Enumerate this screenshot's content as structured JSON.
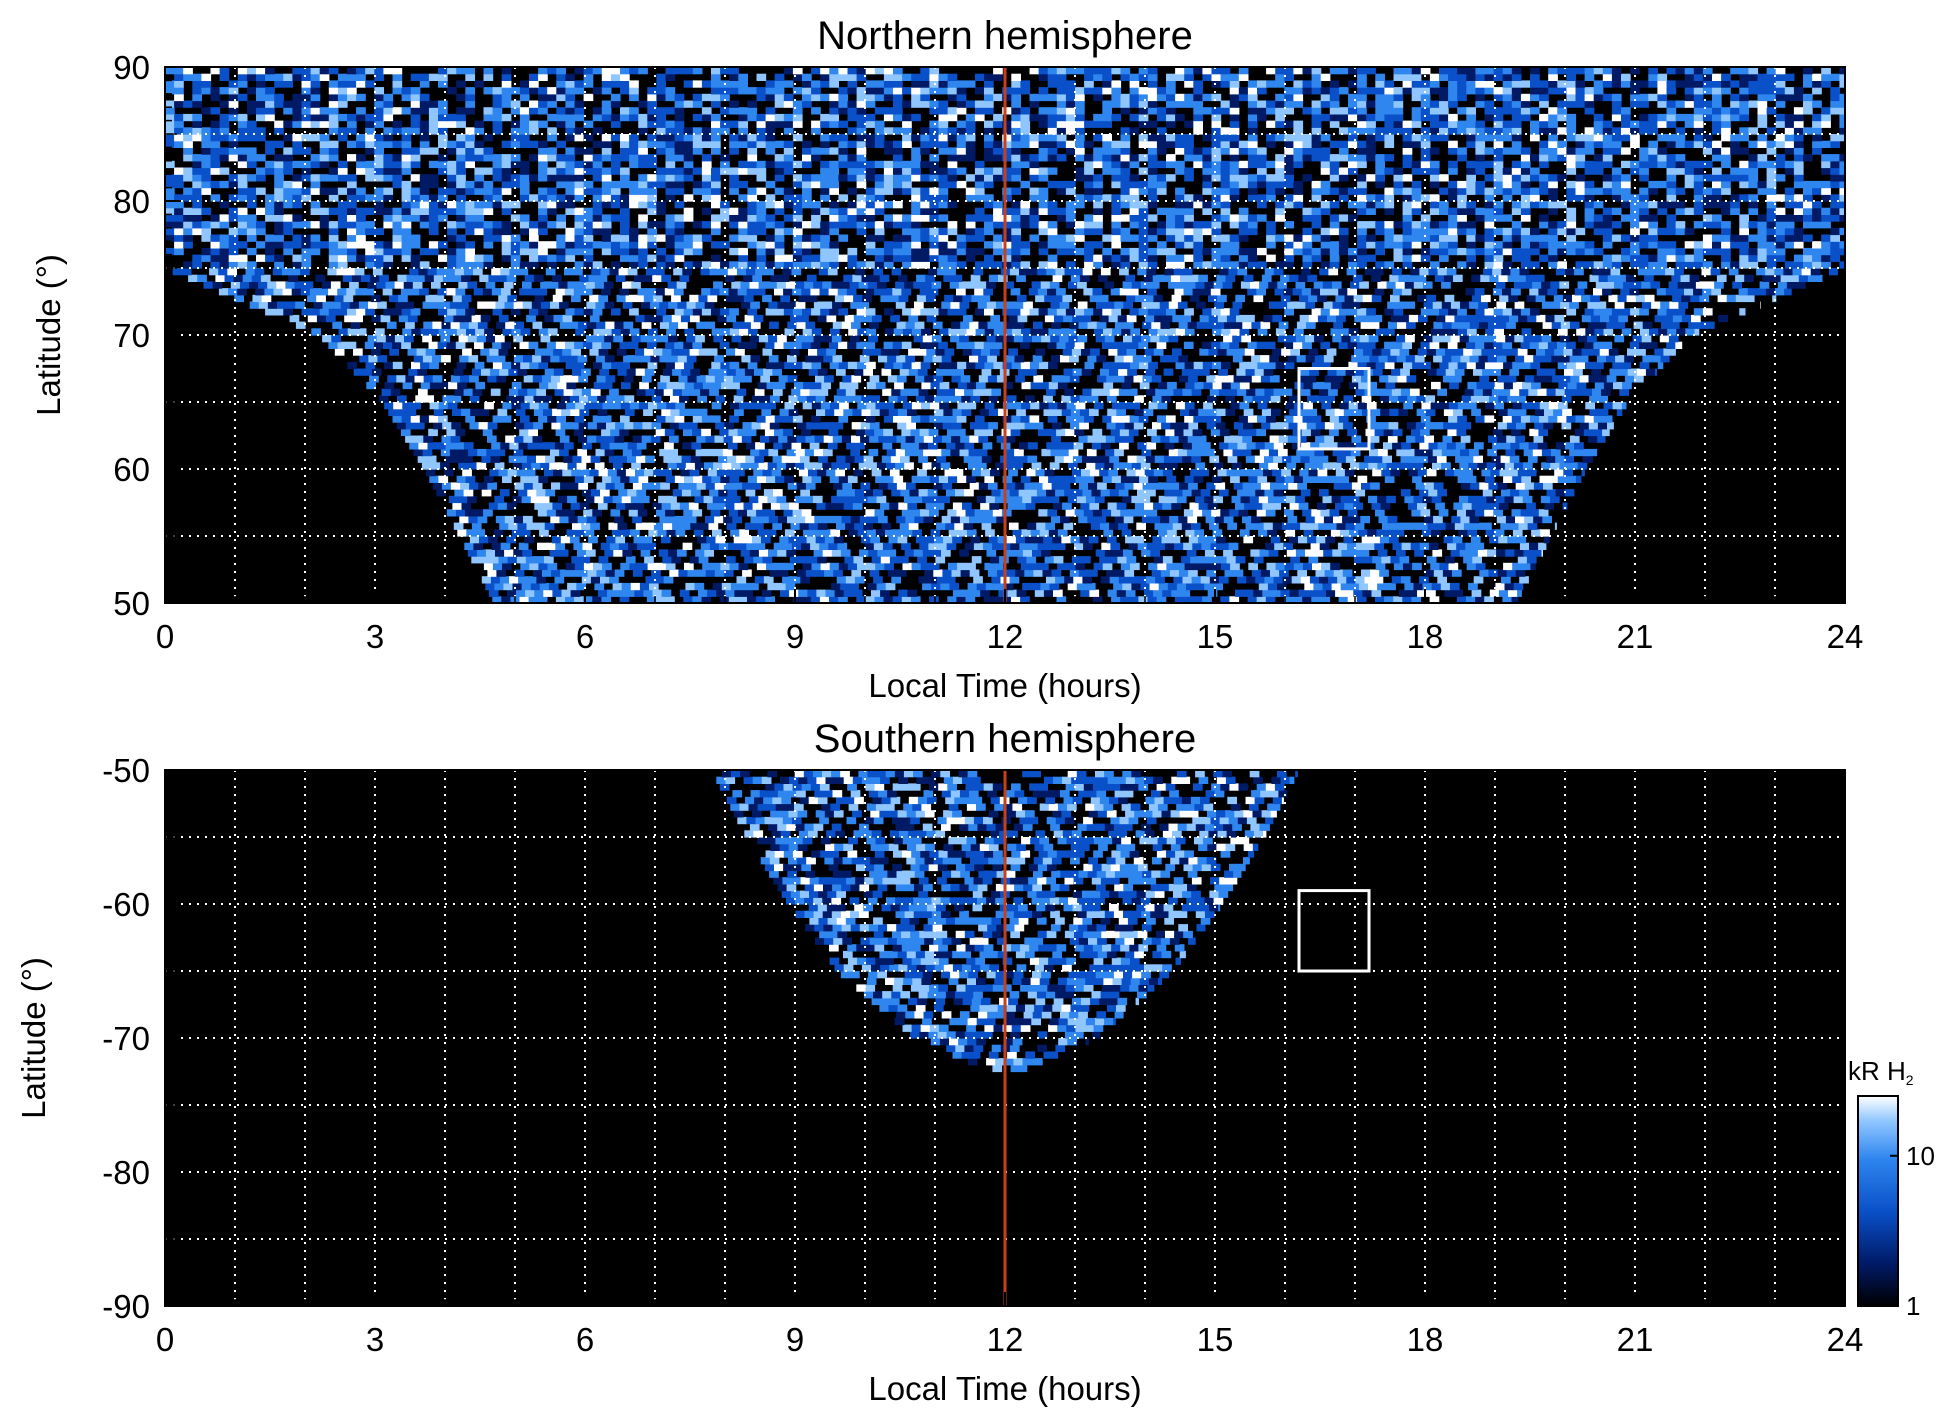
{
  "colorbar": {
    "unit": "kR H",
    "unit_sub": "2",
    "ticks": [
      {
        "value": 10,
        "label": "10"
      },
      {
        "value": 1,
        "label": "1"
      }
    ],
    "range": [
      1,
      25
    ],
    "scale": "log"
  },
  "colors": {
    "background": "#000000",
    "noon_line": "#c8401a",
    "grid": "#ffffff",
    "box": "#ffffff",
    "colormap": [
      "#000000",
      "#001a66",
      "#0a50c8",
      "#2f86ef",
      "#8fc6ff",
      "#ffffff"
    ]
  },
  "chart_data": [
    {
      "type": "heatmap",
      "title": "Northern hemisphere",
      "xlabel": "Local Time (hours)",
      "ylabel": "Latitude (°)",
      "xlim": [
        0,
        24
      ],
      "ylim": [
        50,
        90
      ],
      "xticks": [
        0,
        3,
        6,
        9,
        12,
        15,
        18,
        21,
        24
      ],
      "yticks": [
        50,
        60,
        70,
        80,
        90
      ],
      "grid": true,
      "grid_x_step": 1,
      "grid_y_step": 5,
      "noon_line": 12,
      "highlight_box": {
        "lt": [
          16.2,
          17.2
        ],
        "lat": [
          61.5,
          67.5
        ]
      },
      "coverage_edge": {
        "lat": [
          50,
          55,
          60,
          65,
          70,
          75,
          80,
          85,
          90
        ],
        "lt_from": [
          4.7,
          4.2,
          3.7,
          3.1,
          2.2,
          0,
          0,
          0,
          0
        ],
        "lt_to": [
          19.3,
          19.8,
          20.3,
          20.9,
          21.8,
          24,
          24,
          24,
          24
        ]
      }
    },
    {
      "type": "heatmap",
      "title": "Southern hemisphere",
      "xlabel": "Local Time (hours)",
      "ylabel": "Latitude (°)",
      "xlim": [
        0,
        24
      ],
      "ylim": [
        -90,
        -50
      ],
      "xticks": [
        0,
        3,
        6,
        9,
        12,
        15,
        18,
        21,
        24
      ],
      "yticks": [
        -90,
        -80,
        -70,
        -60,
        -50
      ],
      "grid": true,
      "grid_x_step": 1,
      "grid_y_step": 5,
      "noon_line": 12,
      "highlight_box": {
        "lt": [
          16.2,
          17.2
        ],
        "lat": [
          -65,
          -59
        ]
      },
      "coverage_edge": {
        "lat": [
          -50,
          -55,
          -60,
          -65,
          -70,
          -72.5
        ],
        "lt_from": [
          7.8,
          8.3,
          8.9,
          9.6,
          10.7,
          11.8
        ],
        "lt_to": [
          16.2,
          15.7,
          15.1,
          14.4,
          13.3,
          12.2
        ]
      }
    }
  ]
}
